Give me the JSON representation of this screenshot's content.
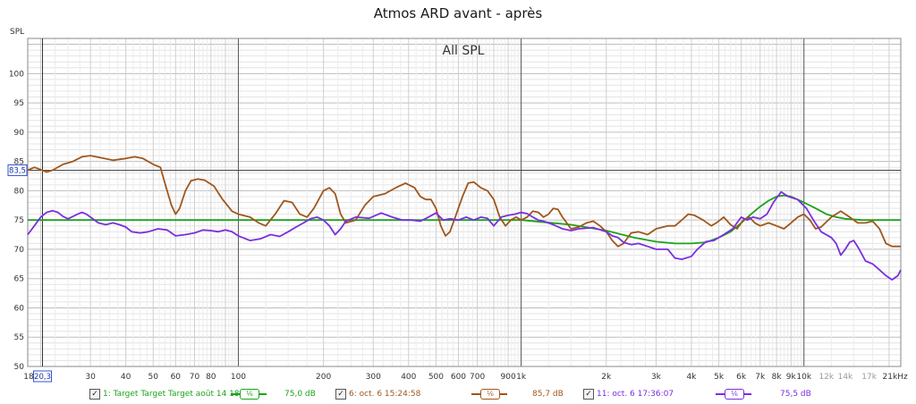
{
  "chart_data": {
    "type": "line",
    "title": "Atmos ARD avant - après",
    "annotation": "All SPL",
    "ylabel": "SPL",
    "ylim": [
      50,
      106
    ],
    "xlim": [
      18,
      22000
    ],
    "xscale": "log",
    "grid": true,
    "y_ticks": [
      "100",
      "95",
      "90",
      "85",
      "80",
      "75",
      "70",
      "65",
      "60",
      "55",
      "50"
    ],
    "x_ticks": [
      {
        "f": 30,
        "label": "30"
      },
      {
        "f": 40,
        "label": "40"
      },
      {
        "f": 50,
        "label": "50"
      },
      {
        "f": 60,
        "label": "60"
      },
      {
        "f": 70,
        "label": "70"
      },
      {
        "f": 80,
        "label": "80"
      },
      {
        "f": 100,
        "label": "100"
      },
      {
        "f": 200,
        "label": "200"
      },
      {
        "f": 300,
        "label": "300"
      },
      {
        "f": 400,
        "label": "400"
      },
      {
        "f": 500,
        "label": "500"
      },
      {
        "f": 600,
        "label": "600"
      },
      {
        "f": 700,
        "label": "700"
      },
      {
        "f": 900,
        "label": "900"
      },
      {
        "f": 1000,
        "label": "1k"
      },
      {
        "f": 2000,
        "label": "2k"
      },
      {
        "f": 3000,
        "label": "3k"
      },
      {
        "f": 4000,
        "label": "4k"
      },
      {
        "f": 5000,
        "label": "5k"
      },
      {
        "f": 6000,
        "label": "6k"
      },
      {
        "f": 7000,
        "label": "7k"
      },
      {
        "f": 8000,
        "label": "8k"
      },
      {
        "f": 9000,
        "label": "9k"
      },
      {
        "f": 10000,
        "label": "10k"
      },
      {
        "f": 12000,
        "label": "12k",
        "muted": true
      },
      {
        "f": 14000,
        "label": "14k",
        "muted": true
      },
      {
        "f": 17000,
        "label": "17k",
        "muted": true
      },
      {
        "f": 21000,
        "label": "21kHz"
      }
    ],
    "x_min_label": "18",
    "cursor": {
      "x": 20.3,
      "x_label": "20,3",
      "y": 83.5,
      "y_label": "83,5"
    },
    "series": [
      {
        "name": "1: Target Target Target août 14 18:",
        "level": "75,0 dB",
        "color": "#1aa31a",
        "points": [
          [
            18,
            75
          ],
          [
            20,
            75
          ],
          [
            50,
            75
          ],
          [
            100,
            75
          ],
          [
            200,
            75
          ],
          [
            500,
            75
          ],
          [
            1000,
            75
          ],
          [
            1500,
            74.2
          ],
          [
            2000,
            73.2
          ],
          [
            2500,
            72
          ],
          [
            3000,
            71.3
          ],
          [
            3500,
            71
          ],
          [
            4000,
            71
          ],
          [
            4500,
            71.2
          ],
          [
            5000,
            72
          ],
          [
            5500,
            73
          ],
          [
            6000,
            74.5
          ],
          [
            6500,
            76
          ],
          [
            7000,
            77.3
          ],
          [
            7500,
            78.3
          ],
          [
            8000,
            79
          ],
          [
            8500,
            79.2
          ],
          [
            9000,
            79
          ],
          [
            10000,
            78
          ],
          [
            11000,
            77
          ],
          [
            12000,
            76
          ],
          [
            13000,
            75.5
          ],
          [
            14000,
            75.2
          ],
          [
            16000,
            75
          ],
          [
            22000,
            75
          ]
        ]
      },
      {
        "name": "6: oct. 6 15:24:58",
        "level": "85,7 dB",
        "color": "#a0561c",
        "points": [
          [
            18,
            83.5
          ],
          [
            19,
            84
          ],
          [
            20,
            83.6
          ],
          [
            21,
            83.2
          ],
          [
            22,
            83.5
          ],
          [
            24,
            84.5
          ],
          [
            26,
            85
          ],
          [
            28,
            85.8
          ],
          [
            30,
            86
          ],
          [
            33,
            85.6
          ],
          [
            36,
            85.2
          ],
          [
            40,
            85.5
          ],
          [
            43,
            85.8
          ],
          [
            46,
            85.5
          ],
          [
            50,
            84.5
          ],
          [
            53,
            84
          ],
          [
            56,
            80
          ],
          [
            58,
            77.5
          ],
          [
            60,
            76
          ],
          [
            62,
            77
          ],
          [
            65,
            80
          ],
          [
            68,
            81.7
          ],
          [
            72,
            82
          ],
          [
            76,
            81.8
          ],
          [
            82,
            80.8
          ],
          [
            88,
            78.5
          ],
          [
            95,
            76.5
          ],
          [
            100,
            76
          ],
          [
            110,
            75.5
          ],
          [
            118,
            74.5
          ],
          [
            125,
            74
          ],
          [
            135,
            76
          ],
          [
            145,
            78.3
          ],
          [
            155,
            78
          ],
          [
            165,
            76
          ],
          [
            175,
            75.5
          ],
          [
            185,
            77
          ],
          [
            200,
            80
          ],
          [
            210,
            80.5
          ],
          [
            220,
            79.5
          ],
          [
            230,
            76
          ],
          [
            240,
            74.5
          ],
          [
            260,
            75
          ],
          [
            280,
            77.5
          ],
          [
            300,
            79
          ],
          [
            330,
            79.5
          ],
          [
            360,
            80.5
          ],
          [
            390,
            81.3
          ],
          [
            420,
            80.5
          ],
          [
            440,
            79
          ],
          [
            460,
            78.5
          ],
          [
            480,
            78.5
          ],
          [
            500,
            77
          ],
          [
            520,
            74
          ],
          [
            540,
            72.3
          ],
          [
            560,
            73
          ],
          [
            590,
            76
          ],
          [
            620,
            79
          ],
          [
            650,
            81.3
          ],
          [
            680,
            81.5
          ],
          [
            720,
            80.5
          ],
          [
            760,
            80
          ],
          [
            800,
            78.5
          ],
          [
            840,
            75.5
          ],
          [
            880,
            74
          ],
          [
            920,
            75
          ],
          [
            960,
            75.5
          ],
          [
            1000,
            75
          ],
          [
            1050,
            75.5
          ],
          [
            1100,
            76.5
          ],
          [
            1150,
            76.3
          ],
          [
            1200,
            75.5
          ],
          [
            1250,
            76
          ],
          [
            1300,
            77
          ],
          [
            1350,
            76.8
          ],
          [
            1400,
            75.5
          ],
          [
            1500,
            73.5
          ],
          [
            1600,
            73.8
          ],
          [
            1700,
            74.5
          ],
          [
            1800,
            74.8
          ],
          [
            1900,
            74
          ],
          [
            2000,
            73
          ],
          [
            2100,
            71.5
          ],
          [
            2200,
            70.5
          ],
          [
            2300,
            71
          ],
          [
            2450,
            72.8
          ],
          [
            2600,
            73
          ],
          [
            2800,
            72.5
          ],
          [
            3000,
            73.5
          ],
          [
            3300,
            74
          ],
          [
            3500,
            74
          ],
          [
            3700,
            75
          ],
          [
            3900,
            76
          ],
          [
            4100,
            75.8
          ],
          [
            4400,
            75
          ],
          [
            4700,
            74
          ],
          [
            4900,
            74.5
          ],
          [
            5200,
            75.5
          ],
          [
            5500,
            74.2
          ],
          [
            5800,
            73.5
          ],
          [
            6100,
            75
          ],
          [
            6400,
            75.5
          ],
          [
            6700,
            74.5
          ],
          [
            7000,
            74
          ],
          [
            7500,
            74.5
          ],
          [
            8000,
            74
          ],
          [
            8500,
            73.5
          ],
          [
            9000,
            74.5
          ],
          [
            9500,
            75.5
          ],
          [
            10000,
            76
          ],
          [
            10500,
            75
          ],
          [
            11000,
            73.5
          ],
          [
            11500,
            73.8
          ],
          [
            12500,
            75.5
          ],
          [
            13500,
            76.5
          ],
          [
            14500,
            75.5
          ],
          [
            15500,
            74.5
          ],
          [
            16500,
            74.5
          ],
          [
            17500,
            74.8
          ],
          [
            18500,
            73.5
          ],
          [
            19500,
            71
          ],
          [
            20500,
            70.5
          ],
          [
            22000,
            70.5
          ]
        ]
      },
      {
        "name": "11: oct. 6 17:36:07",
        "level": "75,5 dB",
        "color": "#7a2ee0",
        "points": [
          [
            18,
            72.5
          ],
          [
            19,
            74
          ],
          [
            20,
            75.5
          ],
          [
            21,
            76.3
          ],
          [
            22,
            76.6
          ],
          [
            23,
            76.3
          ],
          [
            24,
            75.6
          ],
          [
            25,
            75.2
          ],
          [
            26,
            75.6
          ],
          [
            27,
            76
          ],
          [
            28,
            76.3
          ],
          [
            29,
            76
          ],
          [
            30,
            75.5
          ],
          [
            32,
            74.5
          ],
          [
            34,
            74.2
          ],
          [
            36,
            74.5
          ],
          [
            38,
            74.2
          ],
          [
            40,
            73.8
          ],
          [
            42,
            73
          ],
          [
            45,
            72.8
          ],
          [
            48,
            73
          ],
          [
            52,
            73.5
          ],
          [
            56,
            73.3
          ],
          [
            60,
            72.3
          ],
          [
            65,
            72.5
          ],
          [
            70,
            72.8
          ],
          [
            75,
            73.3
          ],
          [
            80,
            73.2
          ],
          [
            85,
            73
          ],
          [
            90,
            73.3
          ],
          [
            95,
            73
          ],
          [
            100,
            72.3
          ],
          [
            110,
            71.5
          ],
          [
            120,
            71.8
          ],
          [
            130,
            72.5
          ],
          [
            140,
            72.2
          ],
          [
            150,
            73
          ],
          [
            160,
            73.8
          ],
          [
            170,
            74.5
          ],
          [
            180,
            75.2
          ],
          [
            190,
            75.5
          ],
          [
            200,
            75
          ],
          [
            210,
            74
          ],
          [
            220,
            72.5
          ],
          [
            230,
            73.5
          ],
          [
            240,
            74.8
          ],
          [
            260,
            75.5
          ],
          [
            290,
            75.3
          ],
          [
            320,
            76.2
          ],
          [
            350,
            75.5
          ],
          [
            380,
            75
          ],
          [
            410,
            75
          ],
          [
            440,
            74.8
          ],
          [
            470,
            75.5
          ],
          [
            500,
            76.2
          ],
          [
            530,
            75
          ],
          [
            560,
            75.2
          ],
          [
            600,
            75
          ],
          [
            640,
            75.5
          ],
          [
            680,
            75
          ],
          [
            720,
            75.5
          ],
          [
            760,
            75.3
          ],
          [
            800,
            74
          ],
          [
            850,
            75.5
          ],
          [
            900,
            75.8
          ],
          [
            950,
            76
          ],
          [
            1000,
            76.3
          ],
          [
            1050,
            76.1
          ],
          [
            1100,
            75.5
          ],
          [
            1150,
            75
          ],
          [
            1200,
            74.8
          ],
          [
            1300,
            74.2
          ],
          [
            1400,
            73.5
          ],
          [
            1500,
            73.2
          ],
          [
            1600,
            73.5
          ],
          [
            1800,
            73.7
          ],
          [
            2000,
            73
          ],
          [
            2100,
            72.3
          ],
          [
            2200,
            72
          ],
          [
            2300,
            71.2
          ],
          [
            2450,
            70.8
          ],
          [
            2600,
            71
          ],
          [
            2800,
            70.5
          ],
          [
            3000,
            70
          ],
          [
            3300,
            70
          ],
          [
            3500,
            68.5
          ],
          [
            3700,
            68.3
          ],
          [
            4000,
            68.8
          ],
          [
            4200,
            70
          ],
          [
            4500,
            71.3
          ],
          [
            4800,
            71.5
          ],
          [
            5200,
            72.5
          ],
          [
            5600,
            73.5
          ],
          [
            6000,
            75.5
          ],
          [
            6300,
            75
          ],
          [
            6600,
            75.5
          ],
          [
            7000,
            75.2
          ],
          [
            7400,
            76
          ],
          [
            7800,
            78
          ],
          [
            8300,
            79.8
          ],
          [
            8800,
            79
          ],
          [
            9500,
            78.5
          ],
          [
            10200,
            77
          ],
          [
            10800,
            75
          ],
          [
            11500,
            73
          ],
          [
            12500,
            72
          ],
          [
            13000,
            71
          ],
          [
            13500,
            69
          ],
          [
            14000,
            70
          ],
          [
            14500,
            71.2
          ],
          [
            15000,
            71.5
          ],
          [
            15600,
            70.2
          ],
          [
            16500,
            68
          ],
          [
            17500,
            67.5
          ],
          [
            18500,
            66.5
          ],
          [
            19500,
            65.5
          ],
          [
            20500,
            64.8
          ],
          [
            21500,
            65.5
          ],
          [
            22000,
            66.5
          ]
        ]
      }
    ]
  }
}
